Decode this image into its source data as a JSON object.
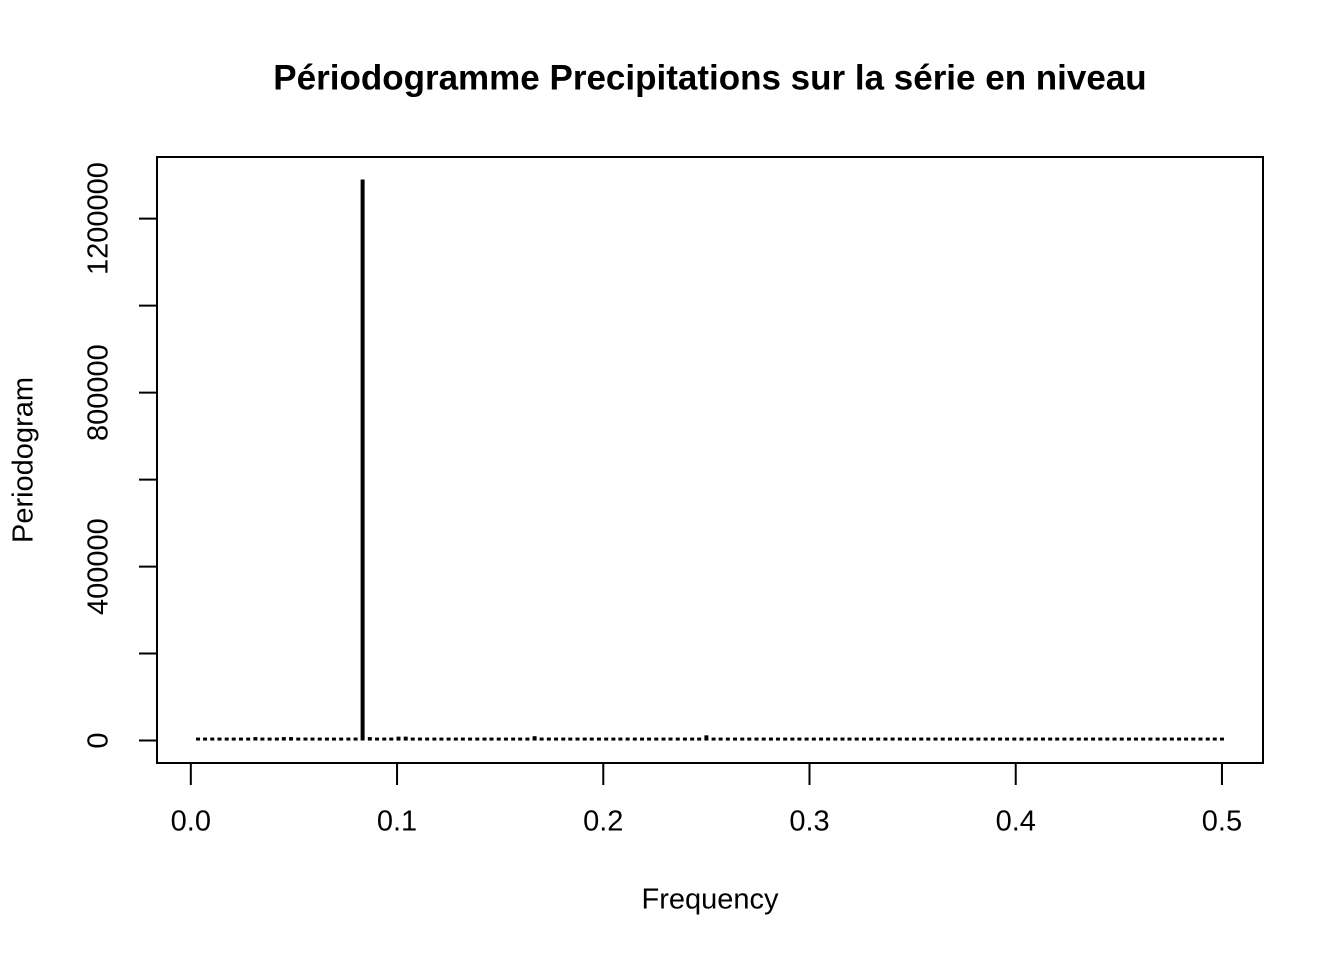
{
  "chart_data": {
    "type": "histline",
    "title": "Périodogramme Precipitations sur la série en niveau",
    "xlabel": "Frequency",
    "ylabel": "Periodogram",
    "color": "#000000",
    "x": [
      0.0035,
      0.0069,
      0.0104,
      0.0139,
      0.0174,
      0.0208,
      0.0243,
      0.0278,
      0.0313,
      0.0347,
      0.0382,
      0.0417,
      0.0451,
      0.0486,
      0.0521,
      0.0556,
      0.059,
      0.0625,
      0.066,
      0.0694,
      0.0729,
      0.0764,
      0.0799,
      0.0833,
      0.0868,
      0.0903,
      0.0938,
      0.0972,
      0.1007,
      0.1042,
      0.1076,
      0.1111,
      0.1146,
      0.1181,
      0.1215,
      0.125,
      0.1285,
      0.1319,
      0.1354,
      0.1389,
      0.1424,
      0.1458,
      0.1493,
      0.1528,
      0.1563,
      0.1597,
      0.1632,
      0.1667,
      0.1701,
      0.1736,
      0.1771,
      0.1806,
      0.184,
      0.1875,
      0.191,
      0.1944,
      0.1979,
      0.2014,
      0.2049,
      0.2083,
      0.2118,
      0.2153,
      0.2188,
      0.2222,
      0.2257,
      0.2292,
      0.2326,
      0.2361,
      0.2396,
      0.2431,
      0.2465,
      0.25,
      0.2535,
      0.2569,
      0.2604,
      0.2639,
      0.2674,
      0.2708,
      0.2743,
      0.2778,
      0.2813,
      0.2847,
      0.2882,
      0.2917,
      0.2951,
      0.2986,
      0.3021,
      0.3056,
      0.309,
      0.3125,
      0.316,
      0.3194,
      0.3229,
      0.3264,
      0.3299,
      0.3333,
      0.3368,
      0.3403,
      0.3438,
      0.3472,
      0.3507,
      0.3542,
      0.3576,
      0.3611,
      0.3646,
      0.3681,
      0.3715,
      0.375,
      0.3785,
      0.3819,
      0.3854,
      0.3889,
      0.3924,
      0.3958,
      0.3993,
      0.4028,
      0.4063,
      0.4097,
      0.4132,
      0.4167,
      0.4201,
      0.4236,
      0.4271,
      0.4306,
      0.434,
      0.4375,
      0.441,
      0.4444,
      0.4479,
      0.4514,
      0.4549,
      0.4583,
      0.4618,
      0.4653,
      0.4688,
      0.4722,
      0.4757,
      0.4792,
      0.4826,
      0.4861,
      0.4896,
      0.4931,
      0.4965,
      0.5
    ],
    "values": [
      2000,
      2000,
      2000,
      2000,
      2000,
      2000,
      3000,
      4000,
      8000,
      2000,
      2000,
      3000,
      8000,
      8000,
      2000,
      2000,
      2000,
      2000,
      2000,
      2000,
      2000,
      2000,
      3000,
      1290000,
      8000,
      3000,
      2000,
      5000,
      9000,
      9000,
      3000,
      2000,
      2000,
      2000,
      2000,
      2000,
      2000,
      2000,
      4000,
      2000,
      2000,
      2000,
      2000,
      2000,
      2000,
      2000,
      2000,
      10000,
      2000,
      2000,
      2000,
      2000,
      2000,
      3000,
      2000,
      2000,
      2000,
      2000,
      2000,
      2000,
      2000,
      2000,
      2000,
      2000,
      2000,
      2000,
      2000,
      2000,
      2000,
      3000,
      2000,
      12000,
      2000,
      2000,
      2000,
      2000,
      2000,
      2000,
      2000,
      2000,
      2000,
      2000,
      2000,
      2000,
      2000,
      2000,
      2000,
      2000,
      2000,
      2000,
      2000,
      2000,
      2000,
      2000,
      2000,
      2000,
      2000,
      2000,
      2000,
      2000,
      2000,
      2000,
      2000,
      2000,
      2000,
      2000,
      2000,
      2000,
      2000,
      2000,
      2000,
      2000,
      2000,
      2000,
      2000,
      2000,
      2000,
      2000,
      2000,
      6000,
      2000,
      2000,
      2000,
      2000,
      2000,
      2000,
      2000,
      2000,
      2000,
      2000,
      2000,
      2000,
      2000,
      2000,
      2000,
      2000,
      2000,
      2000,
      2000,
      2000,
      2000,
      2000,
      2000,
      2000
    ],
    "xlim": [
      -0.0164,
      0.5199
    ],
    "ylim": [
      -51600,
      1341600
    ],
    "xticks": [
      {
        "value": 0,
        "label": "0.0"
      },
      0.1,
      0.2,
      0.3,
      0.4,
      0.5
    ],
    "yticks": [
      0,
      {
        "value": 200000,
        "label": null
      },
      400000,
      {
        "value": 600000,
        "label": null
      },
      800000,
      {
        "value": 1000000,
        "label": null
      },
      1200000
    ]
  }
}
